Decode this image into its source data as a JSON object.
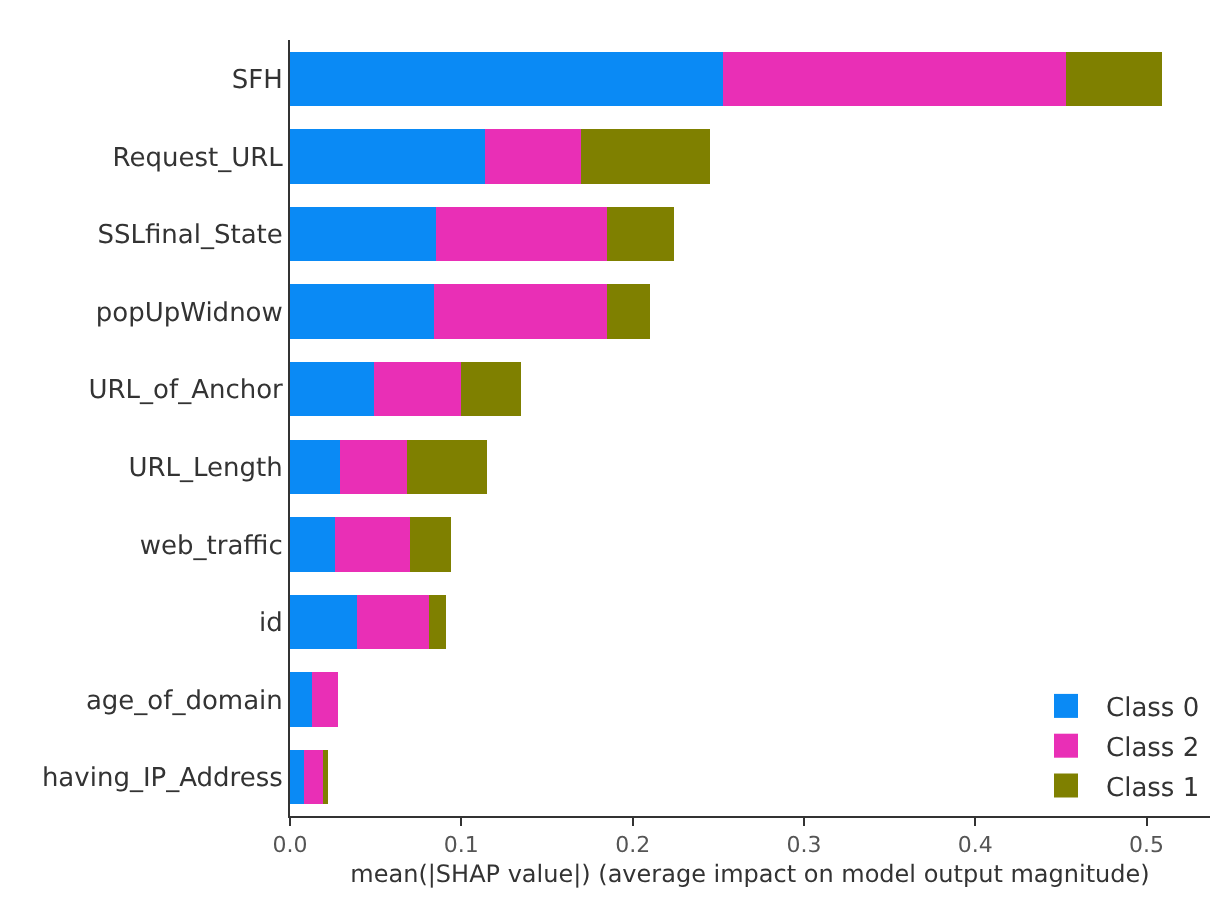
{
  "chart_data": {
    "type": "bar",
    "orientation": "horizontal",
    "stacked": true,
    "categories": [
      "SFH",
      "Request_URL",
      "SSLfinal_State",
      "popUpWidnow",
      "URL_of_Anchor",
      "URL_Length",
      "web_traffic",
      "id",
      "age_of_domain",
      "having_IP_Address"
    ],
    "series": [
      {
        "name": "Class 0",
        "color": "#0a8af5",
        "values": [
          0.253,
          0.114,
          0.085,
          0.084,
          0.049,
          0.029,
          0.026,
          0.039,
          0.013,
          0.008
        ]
      },
      {
        "name": "Class 2",
        "color": "#e92fb6",
        "values": [
          0.2,
          0.056,
          0.1,
          0.101,
          0.051,
          0.039,
          0.044,
          0.042,
          0.015,
          0.011
        ]
      },
      {
        "name": "Class 1",
        "color": "#7f8000",
        "values": [
          0.056,
          0.075,
          0.039,
          0.025,
          0.035,
          0.047,
          0.024,
          0.01,
          0.0,
          0.003
        ]
      }
    ],
    "xlabel": "mean(|SHAP value|) (average impact on model output magnitude)",
    "xlim": [
      0,
      0.537
    ],
    "xticks": [
      {
        "value": 0,
        "label": "0.0"
      },
      0.1,
      0.2,
      0.3,
      0.4,
      0.5
    ],
    "legend": "bottom right"
  }
}
